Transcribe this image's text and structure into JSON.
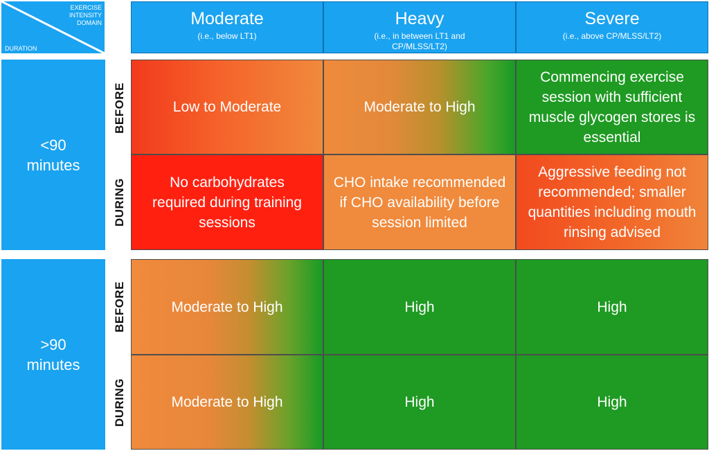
{
  "corner": {
    "top_label": "EXERCISE INTENSITY DOMAIN",
    "bottom_label": "DURATION"
  },
  "columns": [
    {
      "title": "Moderate",
      "subtitle": "(i.e., below LT1)"
    },
    {
      "title": "Heavy",
      "subtitle": "(i.e., in between LT1 and CP/MLSS/LT2)"
    },
    {
      "title": "Severe",
      "subtitle": "(i.e., above CP/MLSS/LT2)"
    }
  ],
  "durations": [
    {
      "label": "<90 minutes"
    },
    {
      "label": ">90 minutes"
    }
  ],
  "phases": {
    "before": "BEFORE",
    "during": "DURING"
  },
  "cells": {
    "short_before": [
      "Low to Moderate",
      "Moderate to High",
      "Commencing exercise session with sufficient muscle glycogen stores is essential"
    ],
    "short_during": [
      "No carbohydrates required during training sessions",
      "CHO intake recommended if CHO availability before session limited",
      "Aggressive feeding not recommended; smaller quantities including mouth rinsing advised"
    ],
    "long_before": [
      "Moderate to High",
      "High",
      "High"
    ],
    "long_during": [
      "Moderate to High",
      "High",
      "High"
    ]
  },
  "colors": {
    "header_blue": "#1aa3f0",
    "green": "#1f9a23",
    "red": "#ff2010",
    "orange": "#f08a3c"
  }
}
